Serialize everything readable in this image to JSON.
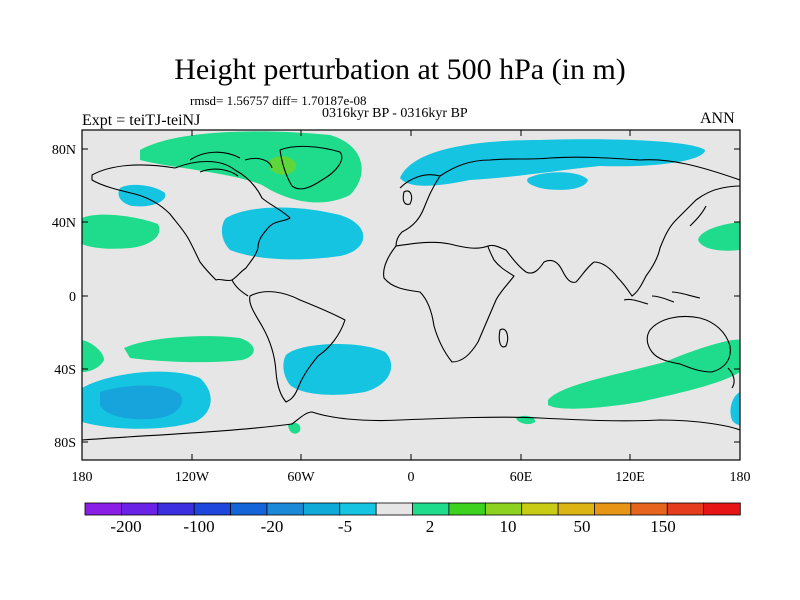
{
  "title": "Height perturbation at 500 hPa (in m)",
  "stats": "rmsd= 1.56757  diff= 1.70187e-08",
  "period": "0316kyr BP - 0316kyr BP",
  "experiment": "Expt = teiTJ-teiNJ",
  "season": "ANN",
  "map": {
    "background_color": "#e6e6e6",
    "lat_ticks": [
      "80N",
      "40N",
      "0",
      "40S",
      "80S"
    ],
    "lon_ticks": [
      "180",
      "120W",
      "60W",
      "0",
      "60E",
      "120E",
      "180"
    ]
  },
  "colorbar": {
    "colors": [
      "#8a1ee6",
      "#6a22e6",
      "#3c2fe0",
      "#1e46dc",
      "#1466d8",
      "#1a8ad8",
      "#10aad8",
      "#14c4e0",
      "#e6e6e6",
      "#1edc8c",
      "#3cd21e",
      "#8cd21e",
      "#c8cc14",
      "#dcb414",
      "#e69614",
      "#e6641e",
      "#e63c1e",
      "#e61414"
    ],
    "labels": [
      "-200",
      "-100",
      "-20",
      "-5",
      "2",
      "10",
      "50",
      "150"
    ]
  }
}
